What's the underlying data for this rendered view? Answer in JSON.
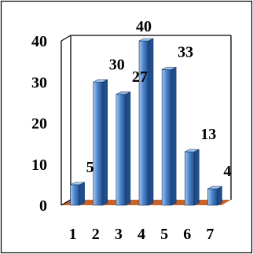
{
  "chart_data": {
    "type": "bar",
    "style": "3d",
    "categories": [
      "1",
      "2",
      "3",
      "4",
      "5",
      "6",
      "7"
    ],
    "values": [
      5,
      30,
      27,
      40,
      33,
      13,
      4
    ],
    "data_labels": [
      "5",
      "30",
      "27",
      "40",
      "33",
      "13",
      "4"
    ],
    "ylim": [
      0,
      40
    ],
    "yticks": [
      "0",
      "10",
      "20",
      "30",
      "40"
    ],
    "title": "",
    "xlabel": "",
    "ylabel": "",
    "grid": false,
    "legend": "none",
    "colors": {
      "bar_light": "#a9c8ee",
      "bar_mid": "#4f86cc",
      "bar_dark": "#1f4e8c",
      "floor": "#c8642a",
      "wall": "#000000"
    }
  }
}
